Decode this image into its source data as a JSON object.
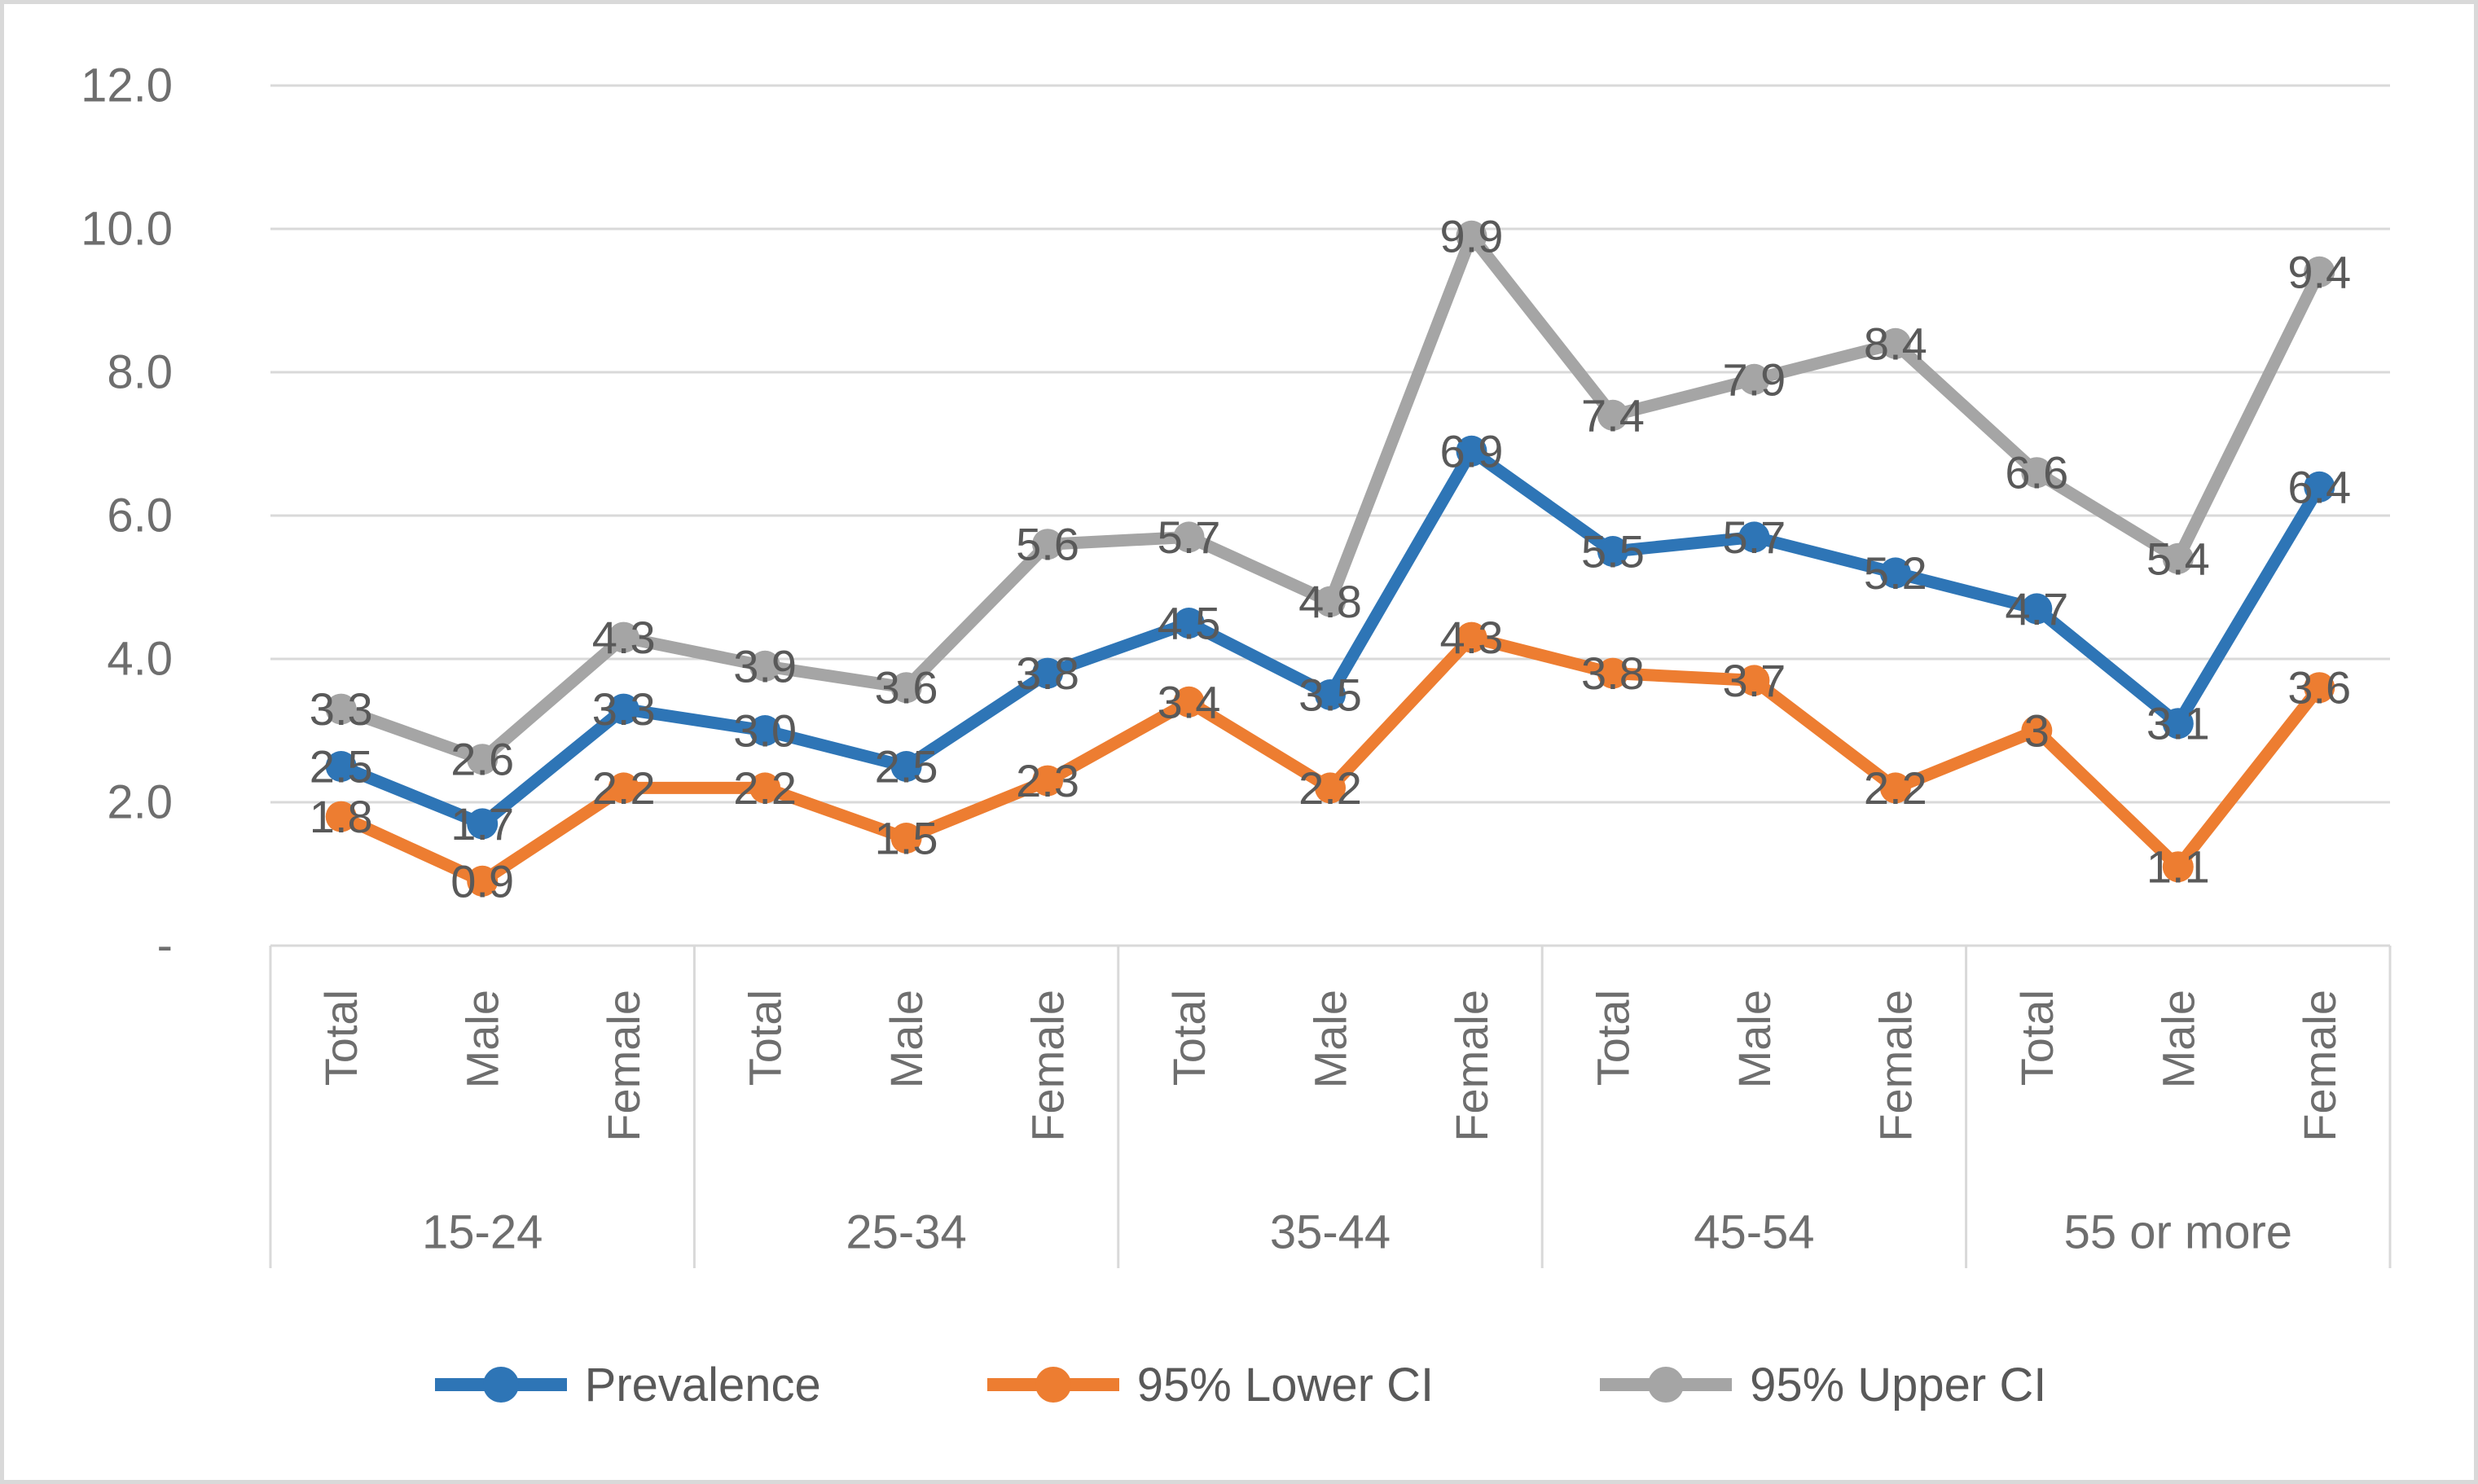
{
  "chart_data": {
    "type": "line",
    "groups": [
      "15-24",
      "25-34",
      "35-44",
      "45-54",
      "55 or more"
    ],
    "categories": [
      "Total",
      "Male",
      "Female",
      "Total",
      "Male",
      "Female",
      "Total",
      "Male",
      "Female",
      "Total",
      "Male",
      "Female",
      "Total",
      "Male",
      "Female"
    ],
    "series": [
      {
        "name": "Prevalence",
        "color": "#2E75B6",
        "values": [
          2.5,
          1.7,
          3.3,
          3.0,
          2.5,
          3.8,
          4.5,
          3.5,
          6.9,
          5.5,
          5.7,
          5.2,
          4.7,
          3.1,
          6.4
        ],
        "labels": [
          "2.5",
          "1.7",
          "3.3",
          "3.0",
          "2.5",
          "3.8",
          "4.5",
          "3.5",
          "6.9",
          "5.5",
          "5.7",
          "5.2",
          "4.7",
          "3.1",
          "6.4"
        ]
      },
      {
        "name": "95% Lower CI",
        "color": "#ED7D31",
        "values": [
          1.8,
          0.9,
          2.2,
          2.2,
          1.5,
          2.3,
          3.4,
          2.2,
          4.3,
          3.8,
          3.7,
          2.2,
          3.0,
          1.1,
          3.6
        ],
        "labels": [
          "1.8",
          "0.9",
          "2.2",
          "2.2",
          "1.5",
          "2.3",
          "3.4",
          "2.2",
          "4.3",
          "3.8",
          "3.7",
          "2.2",
          "3",
          "1.1",
          "3.6"
        ]
      },
      {
        "name": "95% Upper CI",
        "color": "#A5A5A5",
        "values": [
          3.3,
          2.6,
          4.3,
          3.9,
          3.6,
          5.6,
          5.7,
          4.8,
          9.9,
          7.4,
          7.9,
          8.4,
          6.6,
          5.4,
          9.4
        ],
        "labels": [
          "3.3",
          "2.6",
          "4.3",
          "3.9",
          "3.6",
          "5.6",
          "5.7",
          "4.8",
          "9.9",
          "7.4",
          "7.9",
          "8.4",
          "6.6",
          "5.4",
          "9.4"
        ]
      }
    ],
    "y_axis": {
      "min": 0,
      "max": 12,
      "step": 2,
      "tick_labels": [
        "-",
        "2.0",
        "4.0",
        "6.0",
        "8.0",
        "10.0",
        "12.0"
      ]
    },
    "grid": true,
    "legend_position": "bottom",
    "styles": {
      "gridline_color": "#d9d9d9",
      "axis_text_color": "#6e6e6e",
      "data_label_color": "#595959"
    }
  }
}
